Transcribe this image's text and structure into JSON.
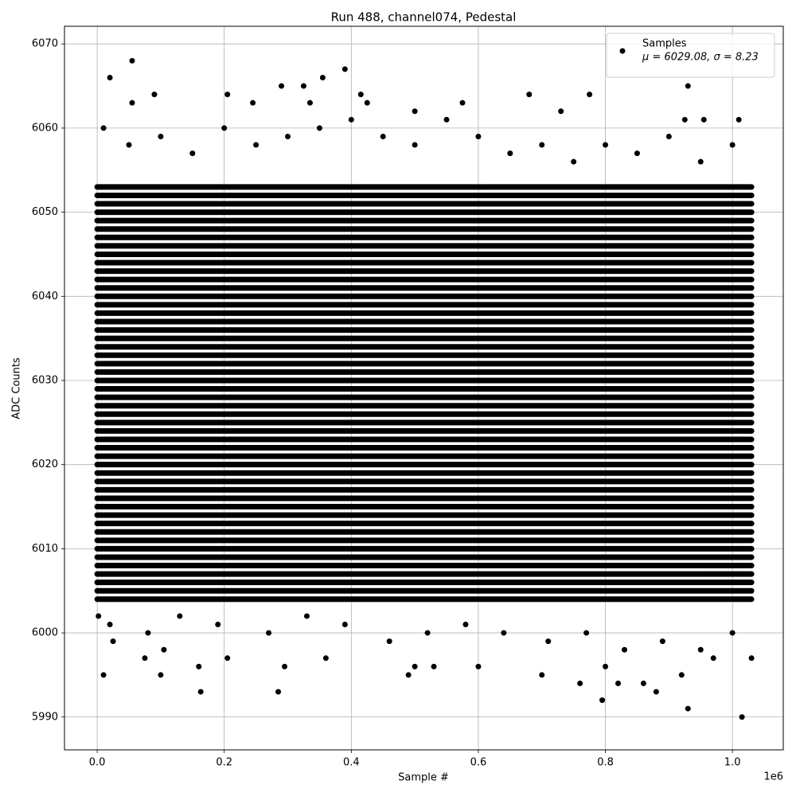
{
  "chart_data": {
    "type": "scatter",
    "title": "Run 488, channel074, Pedestal",
    "x_label": "Sample #",
    "y_label": "ADC Counts",
    "x_offset_label": "1e6",
    "xlim": [
      -51500,
      1080000
    ],
    "ylim": [
      5986.1,
      6072.1
    ],
    "xticks": [
      {
        "value": 0,
        "label": "0.0"
      },
      {
        "value": 200000,
        "label": "0.2"
      },
      {
        "value": 400000,
        "label": "0.4"
      },
      {
        "value": 600000,
        "label": "0.6"
      },
      {
        "value": 800000,
        "label": "0.8"
      },
      {
        "value": 1000000,
        "label": "1.0"
      }
    ],
    "yticks": [
      5990,
      6000,
      6010,
      6020,
      6030,
      6040,
      6050,
      6060,
      6070
    ],
    "grid": true,
    "legend_position": "upper right",
    "series": [
      {
        "name": "Samples",
        "stats_label": "μ = 6029.08, σ = 8.23",
        "color": "#000000",
        "band_values": [
          6004,
          6005,
          6006,
          6007,
          6008,
          6009,
          6010,
          6011,
          6012,
          6013,
          6014,
          6015,
          6016,
          6017,
          6018,
          6019,
          6020,
          6021,
          6022,
          6023,
          6024,
          6025,
          6026,
          6027,
          6028,
          6029,
          6030,
          6031,
          6032,
          6033,
          6034,
          6035,
          6036,
          6037,
          6038,
          6039,
          6040,
          6041,
          6042,
          6043,
          6044,
          6045,
          6046,
          6047,
          6048,
          6049,
          6050,
          6051,
          6052,
          6053
        ],
        "band_x": [
          0,
          1030000
        ],
        "x": [
          2000,
          10000,
          20000,
          25000,
          55000,
          55000,
          75000,
          90000,
          100000,
          105000,
          160000,
          163000,
          205000,
          205000,
          245000,
          285000,
          290000,
          295000,
          325000,
          335000,
          355000,
          360000,
          390000,
          415000,
          425000,
          490000,
          500000,
          500000,
          530000,
          575000,
          600000,
          680000,
          700000,
          730000,
          760000,
          775000,
          795000,
          800000,
          820000,
          860000,
          880000,
          920000,
          925000,
          930000,
          930000,
          955000,
          1015000,
          1010000,
          1030000,
          970000,
          10000,
          50000,
          100000,
          150000,
          200000,
          250000,
          300000,
          350000,
          400000,
          450000,
          500000,
          550000,
          600000,
          650000,
          700000,
          750000,
          800000,
          850000,
          900000,
          950000,
          1000000,
          20000,
          80000,
          130000,
          190000,
          270000,
          330000,
          390000,
          460000,
          520000,
          580000,
          640000,
          710000,
          770000,
          830000,
          890000,
          950000,
          1000000
        ],
        "values": [
          6002,
          5995,
          6066,
          5999,
          6068,
          6063,
          5997,
          6064,
          5995,
          5998,
          5996,
          5993,
          5997,
          6064,
          6063,
          5993,
          6065,
          5996,
          6065,
          6063,
          6066,
          5997,
          6067,
          6064,
          6063,
          5995,
          5996,
          6062,
          5996,
          6063,
          5996,
          6064,
          5995,
          6062,
          5994,
          6064,
          5992,
          5996,
          5994,
          5994,
          5993,
          5995,
          6061,
          6065,
          5991,
          6061,
          5990,
          6061,
          5997,
          5997,
          6060,
          6058,
          6059,
          6057,
          6060,
          6058,
          6059,
          6060,
          6061,
          6059,
          6058,
          6061,
          6059,
          6057,
          6058,
          6056,
          6058,
          6057,
          6059,
          6056,
          6058,
          6001,
          6000,
          6002,
          6001,
          6000,
          6002,
          6001,
          5999,
          6000,
          6001,
          6000,
          5999,
          6000,
          5998,
          5999,
          5998,
          6000
        ]
      }
    ]
  }
}
